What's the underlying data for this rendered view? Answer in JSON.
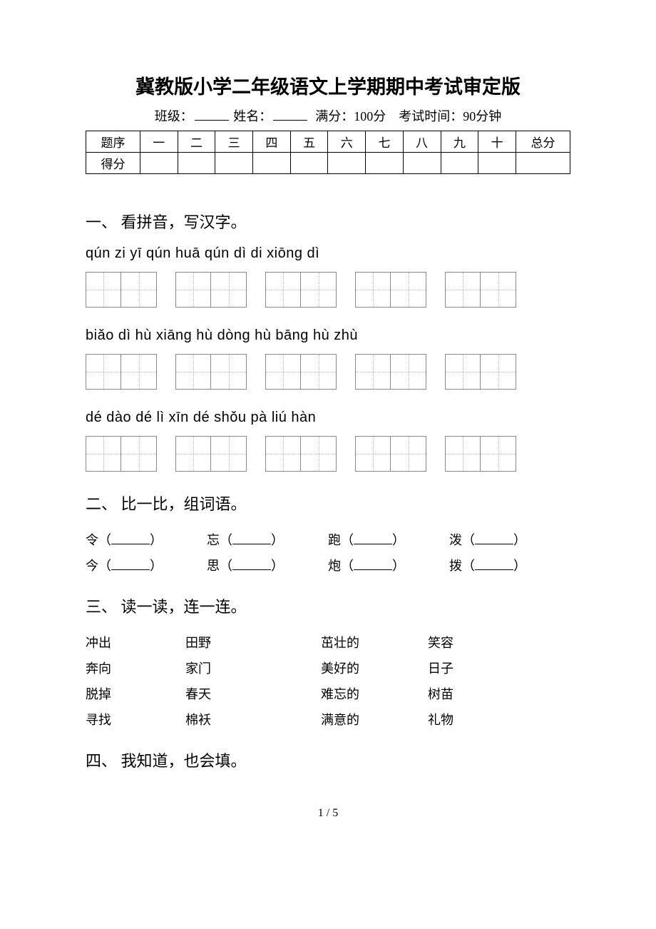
{
  "title": "冀教版小学二年级语文上学期期中考试审定版",
  "subhead": {
    "class_label": "班级：",
    "name_label": "姓名：",
    "fullscore_label": "满分：100分",
    "time_label": "考试时间：90分钟"
  },
  "score_table": {
    "row1_label": "题序",
    "row2_label": "得分",
    "cols": [
      "一",
      "二",
      "三",
      "四",
      "五",
      "六",
      "七",
      "八",
      "九",
      "十"
    ],
    "total": "总分"
  },
  "q1": {
    "heading": "一、 看拼音，写汉字。",
    "lines": [
      {
        "pinyin": "qún  zi     yī  qún    huā qún    dì  di    xiōng dì",
        "groups": 5
      },
      {
        "pinyin": "biǎo dì    hù xiāng   hù dòng  hù  bāng  hù  zhù",
        "groups": 5
      },
      {
        "pinyin": "dé   dào   dé  lì    xīn  dé    shǒu pà    liú  hàn",
        "groups": 5
      }
    ]
  },
  "q2": {
    "heading": "二、 比一比，组词语。",
    "rows": [
      [
        "令",
        "忘",
        "跑",
        "泼"
      ],
      [
        "今",
        "思",
        "炮",
        "拨"
      ]
    ]
  },
  "q3": {
    "heading": "三、 读一读，连一连。",
    "rows": [
      [
        "冲出",
        "田野",
        "茁壮的",
        "笑容"
      ],
      [
        "奔向",
        "家门",
        "美好的",
        "日子"
      ],
      [
        "脱掉",
        "春天",
        "难忘的",
        "树苗"
      ],
      [
        "寻找",
        "棉袄",
        "满意的",
        "礼物"
      ]
    ]
  },
  "q4": {
    "heading": "四、 我知道，也会填。"
  },
  "footer": "1 / 5"
}
